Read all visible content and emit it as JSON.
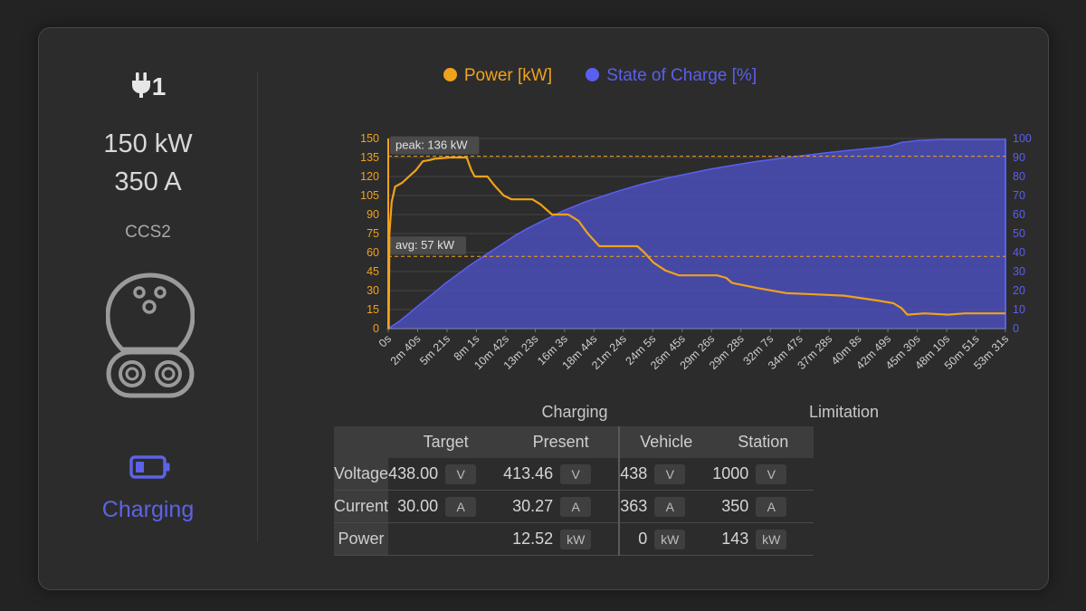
{
  "connector": {
    "id": "1",
    "max_power": "150 kW",
    "max_current": "350 A",
    "type": "CCS2",
    "status": "Charging"
  },
  "colors": {
    "power": "#f0a21c",
    "soc": "#5a5ff0",
    "soc_fill": "#4b4fb8",
    "status": "#5c63e6"
  },
  "chart_data": {
    "type": "line",
    "legend": [
      "Power [kW]",
      "State of Charge [%]"
    ],
    "legend_position": "top",
    "grid": true,
    "x_labels": [
      "0s",
      "2m 40s",
      "5m 21s",
      "8m 1s",
      "10m 42s",
      "13m 23s",
      "16m 3s",
      "18m 44s",
      "21m 24s",
      "24m 5s",
      "26m 45s",
      "29m 26s",
      "29m 28s",
      "32m 7s",
      "34m 47s",
      "37m 28s",
      "40m 8s",
      "42m 49s",
      "45m 30s",
      "48m 10s",
      "50m 51s",
      "53m 31s"
    ],
    "y_left": {
      "min": 0,
      "max": 150,
      "ticks": [
        "0",
        "15",
        "30",
        "45",
        "60",
        "75",
        "90",
        "105",
        "120",
        "135",
        "150"
      ]
    },
    "y_right": {
      "min": 0,
      "max": 100,
      "ticks": [
        "0",
        "10",
        "20",
        "30",
        "40",
        "50",
        "60",
        "70",
        "80",
        "90",
        "100"
      ]
    },
    "annotations": [
      {
        "label": "peak: 136 kW",
        "value": 136
      },
      {
        "label": "avg: 57 kW",
        "value": 57
      }
    ],
    "series": [
      {
        "name": "Power [kW]",
        "axis": "left",
        "type": "line",
        "points": [
          [
            0,
            0
          ],
          [
            0.05,
            0
          ],
          [
            0.1,
            75
          ],
          [
            0.3,
            100
          ],
          [
            0.6,
            112
          ],
          [
            1.2,
            115
          ],
          [
            1.8,
            120
          ],
          [
            2.4,
            125
          ],
          [
            3.0,
            132
          ],
          [
            3.6,
            133
          ],
          [
            4.0,
            134
          ],
          [
            5.3,
            135
          ],
          [
            6.2,
            135
          ],
          [
            6.8,
            135
          ],
          [
            7.2,
            125
          ],
          [
            7.5,
            120
          ],
          [
            8.6,
            120
          ],
          [
            9.2,
            113
          ],
          [
            10.0,
            105
          ],
          [
            10.7,
            102
          ],
          [
            12.5,
            102
          ],
          [
            13.2,
            98
          ],
          [
            14.2,
            90
          ],
          [
            15.6,
            90
          ],
          [
            16.5,
            85
          ],
          [
            17.3,
            75
          ],
          [
            18.3,
            65
          ],
          [
            20.0,
            65
          ],
          [
            21.6,
            65
          ],
          [
            22.2,
            60
          ],
          [
            23.0,
            52
          ],
          [
            24.0,
            46
          ],
          [
            25.2,
            42
          ],
          [
            26.2,
            42
          ],
          [
            28.5,
            42
          ],
          [
            29.3,
            40
          ],
          [
            29.8,
            36
          ],
          [
            32.0,
            32
          ],
          [
            34.5,
            28
          ],
          [
            37.0,
            27
          ],
          [
            39.5,
            26
          ],
          [
            41.0,
            24
          ],
          [
            42.5,
            22
          ],
          [
            43.8,
            20
          ],
          [
            44.5,
            16
          ],
          [
            45.0,
            11
          ],
          [
            46.5,
            12
          ],
          [
            48.5,
            11
          ],
          [
            50.0,
            12
          ],
          [
            53.5,
            12
          ]
        ]
      },
      {
        "name": "State of Charge [%]",
        "axis": "right",
        "type": "area",
        "points": [
          [
            0,
            0
          ],
          [
            1,
            4
          ],
          [
            2,
            9
          ],
          [
            3,
            14
          ],
          [
            4,
            19
          ],
          [
            5,
            24
          ],
          [
            6,
            28.5
          ],
          [
            7,
            33
          ],
          [
            8,
            37
          ],
          [
            9,
            41
          ],
          [
            10,
            45
          ],
          [
            11,
            49
          ],
          [
            12,
            52.5
          ],
          [
            13,
            55.5
          ],
          [
            14,
            58.5
          ],
          [
            15,
            61.5
          ],
          [
            16,
            64
          ],
          [
            17,
            66.5
          ],
          [
            18,
            68.5
          ],
          [
            19,
            70.5
          ],
          [
            20,
            72.5
          ],
          [
            22,
            76
          ],
          [
            24,
            79
          ],
          [
            26,
            81.5
          ],
          [
            28,
            84
          ],
          [
            30,
            86
          ],
          [
            32,
            88
          ],
          [
            34,
            89.5
          ],
          [
            36,
            91
          ],
          [
            38,
            92.5
          ],
          [
            40,
            93.8
          ],
          [
            42,
            95
          ],
          [
            43.5,
            96
          ],
          [
            44.5,
            98
          ],
          [
            46,
            99
          ],
          [
            48,
            99.5
          ],
          [
            50,
            99.5
          ],
          [
            52,
            99.5
          ],
          [
            53.5,
            99.5
          ]
        ]
      }
    ],
    "x_max_minutes": 53.5
  },
  "table": {
    "group_charging": "Charging",
    "group_limitation": "Limitation",
    "col_target": "Target",
    "col_present": "Present",
    "col_vehicle": "Vehicle",
    "col_station": "Station",
    "rows": [
      {
        "label": "Voltage",
        "target": "438.00",
        "target_unit": "V",
        "present": "413.46",
        "present_unit": "V",
        "vehicle": "438",
        "vehicle_unit": "V",
        "station": "1000",
        "station_unit": "V"
      },
      {
        "label": "Current",
        "target": "30.00",
        "target_unit": "A",
        "present": "30.27",
        "present_unit": "A",
        "vehicle": "363",
        "vehicle_unit": "A",
        "station": "350",
        "station_unit": "A"
      },
      {
        "label": "Power",
        "target": "",
        "target_unit": "",
        "present": "12.52",
        "present_unit": "kW",
        "vehicle": "0",
        "vehicle_unit": "kW",
        "station": "143",
        "station_unit": "kW"
      }
    ]
  }
}
